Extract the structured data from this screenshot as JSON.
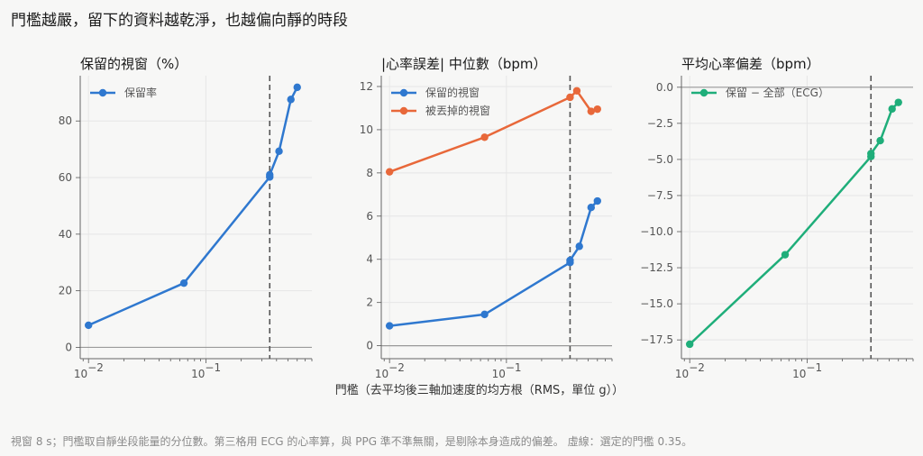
{
  "title": "門檻越嚴，留下的資料越乾淨，也越偏向靜的時段",
  "footnote": "視窗 8 s；門檻取自靜坐段能量的分位數。第三格用 ECG 的心率算，與 PPG 準不準無關，是剔除本身造成的偏差。 虛線：選定的門檻 0.35。",
  "shared_xlabel": "門檻（去平均後三軸加速度的均方根（RMS，單位 g））",
  "colors": {
    "blue": "#2f78cf",
    "orange": "#e8683a",
    "green": "#1fae7a",
    "threshold_line": "#555555"
  },
  "chart_data": [
    {
      "type": "line",
      "title": "保留的視窗（%）",
      "xscale": "log",
      "xlim": [
        0.0085,
        0.8
      ],
      "xticks": [
        0.01,
        0.1
      ],
      "xtick_labels": [
        [
          "10",
          "−2"
        ],
        [
          "10",
          "−1"
        ]
      ],
      "ylim": [
        -4,
        96
      ],
      "yticks": [
        0,
        20,
        40,
        60,
        80
      ],
      "ytick_labels": [
        "0",
        "20",
        "40",
        "60",
        "80"
      ],
      "zero_line": true,
      "threshold": 0.35,
      "legend_position": "top-left",
      "grid": true,
      "series": [
        {
          "name": "保留率",
          "color": "#2f78cf",
          "x": [
            0.01,
            0.065,
            0.35,
            0.35,
            0.42,
            0.53,
            0.6
          ],
          "y": [
            7.8,
            22.7,
            60.2,
            61.0,
            69.3,
            87.6,
            91.9
          ]
        }
      ]
    },
    {
      "type": "line",
      "title": "|心率誤差| 中位數（bpm）",
      "xscale": "log",
      "xlim": [
        0.0085,
        0.8
      ],
      "xticks": [
        0.01,
        0.1
      ],
      "xtick_labels": [
        [
          "10",
          "−2"
        ],
        [
          "10",
          "−1"
        ]
      ],
      "ylim": [
        -0.6,
        12.5
      ],
      "yticks": [
        0,
        2,
        4,
        6,
        8,
        10,
        12
      ],
      "ytick_labels": [
        "0",
        "2",
        "4",
        "6",
        "8",
        "10",
        "12"
      ],
      "zero_line": true,
      "threshold": 0.35,
      "legend_position": "top-left",
      "grid": true,
      "series": [
        {
          "name": "保留的視窗",
          "color": "#2f78cf",
          "x": [
            0.01,
            0.065,
            0.35,
            0.35,
            0.42,
            0.53,
            0.6
          ],
          "y": [
            0.92,
            1.45,
            3.85,
            3.95,
            4.6,
            6.4,
            6.7
          ]
        },
        {
          "name": "被丟掉的視窗",
          "color": "#e8683a",
          "x": [
            0.01,
            0.065,
            0.35,
            0.4,
            0.53,
            0.6
          ],
          "y": [
            8.05,
            9.65,
            11.5,
            11.8,
            10.85,
            10.95
          ]
        }
      ]
    },
    {
      "type": "line",
      "title": "平均心率偏差（bpm）",
      "xscale": "log",
      "xlim": [
        0.0085,
        0.8
      ],
      "xticks": [
        0.01,
        0.1
      ],
      "xtick_labels": [
        [
          "10",
          "−2"
        ],
        [
          "10",
          "−1"
        ]
      ],
      "ylim": [
        -18.8,
        0.8
      ],
      "yticks": [
        0,
        -2.5,
        -5,
        -7.5,
        -10,
        -12.5,
        -15,
        -17.5
      ],
      "ytick_labels": [
        "0.0",
        "−2.5",
        "−5.0",
        "−7.5",
        "−10.0",
        "−12.5",
        "−15.0",
        "−17.5"
      ],
      "zero_line": true,
      "threshold": 0.35,
      "legend_position": "top-left",
      "grid": true,
      "series": [
        {
          "name": "保留 − 全部（ECG）",
          "color": "#1fae7a",
          "x": [
            0.01,
            0.065,
            0.35,
            0.35,
            0.42,
            0.53,
            0.6
          ],
          "y": [
            -17.8,
            -11.6,
            -4.8,
            -4.6,
            -3.7,
            -1.5,
            -1.05
          ]
        }
      ]
    }
  ]
}
